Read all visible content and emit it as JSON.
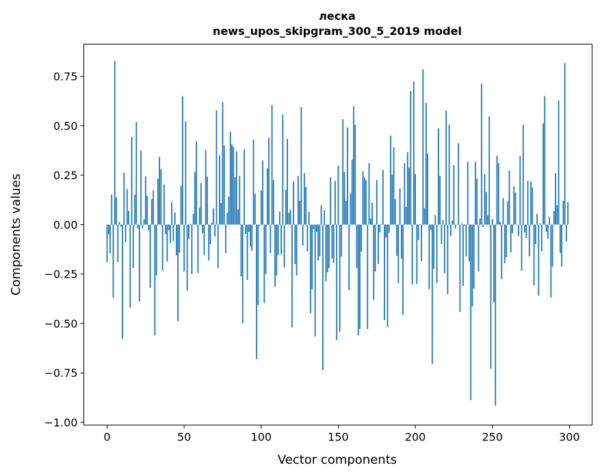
{
  "chart_data": {
    "type": "bar",
    "title_line1": "леска",
    "title_line2": "news_upos_skipgram_300_5_2019 model",
    "xlabel": "Vector components",
    "ylabel": "Components values",
    "xlim": [
      -15.1,
      314.7
    ],
    "ylim": [
      -1.014,
      0.913
    ],
    "xticks": [
      0,
      50,
      100,
      150,
      200,
      250,
      300
    ],
    "xtick_labels": [
      "0",
      "50",
      "100",
      "150",
      "200",
      "250",
      "300"
    ],
    "yticks": [
      0.75,
      0.5,
      0.25,
      0,
      -0.25,
      -0.5,
      -0.75,
      -1.0
    ],
    "ytick_labels": [
      "0.75",
      "0.50",
      "0.25",
      "0.00",
      "−0.25",
      "−0.50",
      "−0.75",
      "−1.00"
    ],
    "grid": false,
    "bar_color": "#1f77b4",
    "bar_width": 0.8,
    "values": [
      -0.19,
      -0.05,
      -0.145,
      0.152,
      -0.37,
      0.827,
      0.138,
      -0.19,
      0.014,
      -0.01,
      -0.578,
      0.263,
      -0.09,
      0.18,
      0.07,
      -0.42,
      0.443,
      -0.22,
      0.152,
      0.519,
      -0.02,
      -0.39,
      0.374,
      -0.02,
      0.028,
      0.245,
      0.145,
      -0.03,
      -0.32,
      0.128,
      0.173,
      -0.56,
      -0.256,
      0.232,
      0.342,
      0.28,
      -0.232,
      0.204,
      -0.048,
      -0.187,
      -0.028,
      -0.093,
      0.114,
      -0.083,
      0.062,
      -0.156,
      -0.49,
      -0.142,
      0.197,
      0.65,
      -0.238,
      0.522,
      -0.334,
      -0.072,
      0.005,
      -0.25,
      0.055,
      0.266,
      0.422,
      -0.245,
      0.086,
      0.211,
      -0.044,
      -0.155,
      0.377,
      0.242,
      -0.182,
      -0.1,
      0.01,
      0.083,
      -0.06,
      0.578,
      -0.22,
      0.35,
      0.11,
      0.62,
      0.4,
      -0.144,
      0.059,
      0.142,
      0.47,
      0.405,
      0.394,
      0.239,
      0.37,
      0.076,
      0.246,
      -0.262,
      -0.5,
      0.38,
      -0.047,
      -0.28,
      -0.037,
      -0.11,
      -0.134,
      0.43,
      0.156,
      -0.68,
      -0.407,
      -0.007,
      0.173,
      0.325,
      -0.397,
      -0.25,
      0.284,
      0.44,
      -0.144,
      0.606,
      0.225,
      -0.314,
      -0.258,
      -0.155,
      0.066,
      -0.15,
      0.557,
      -0.217,
      0.176,
      0.433,
      0.059,
      0.076,
      -0.52,
      0.218,
      -0.2,
      -0.258,
      0.246,
      0.121,
      0.595,
      -0.106,
      0.26,
      0.19,
      -0.137,
      0.066,
      -0.449,
      -0.328,
      -0.023,
      -0.566,
      -0.037,
      -0.182,
      -0.161,
      0.097,
      -0.736,
      0.073,
      -0.286,
      -0.241,
      -0.22,
      0.239,
      -0.172,
      -0.193,
      0.221,
      -0.584,
      0.298,
      -0.542,
      -0.161,
      0.533,
      0.266,
      0.121,
      0.491,
      -0.331,
      0.156,
      0.329,
      0.599,
      0.505,
      -0.22,
      -0.56,
      -0.528,
      -0.137,
      0.27,
      0.239,
      0.225,
      -0.528,
      0.311,
      0.031,
      0.111,
      -0.38,
      -0.238,
      0.225,
      -0.2,
      -0.04,
      0.003,
      0.277,
      -0.483,
      -0.065,
      -0.518,
      -0.04,
      0.45,
      0.253,
      0.391,
      0.128,
      -0.158,
      -0.296,
      0.183,
      -0.172,
      -0.456,
      0.311,
      0.09,
      0.367,
      0.287,
      0.676,
      -0.303,
      0.723,
      0.256,
      -0.3,
      -0.078,
      0.003,
      -0.186,
      0.785,
      0.083,
      0.616,
      0.36,
      -0.328,
      -0.027,
      -0.705,
      -0.224,
      0.048,
      -0.296,
      0.488,
      0.246,
      -0.099,
      0.024,
      -0.245,
      0.578,
      -0.352,
      0.505,
      -0.058,
      0.021,
      0.301,
      -0.02,
      0.0,
      0.412,
      -0.442,
      0.007,
      -0.31,
      -0.006,
      -0.161,
      0.318,
      -0.186,
      -0.888,
      -0.414,
      -0.324,
      0.318,
      0.232,
      -0.238,
      0.031,
      0.713,
      -0.013,
      0.256,
      0.166,
      0.045,
      0.547,
      -0.729,
      0.028,
      -0.393,
      -0.916,
      0.349,
      0.311,
      0.014,
      -0.276,
      0.135,
      -0.196,
      -0.165,
      0.118,
      0.273,
      -0.141,
      -0.044,
      0.194,
      0.163,
      0.0,
      -0.058,
      0.346,
      -0.234,
      0.505,
      -0.04,
      -0.068,
      0.221,
      -0.161,
      0.218,
      0.187,
      -0.307,
      -0.099,
      0.055,
      -0.359,
      0.007,
      -0.137,
      0.512,
      0.65,
      -0.037,
      -0.072,
      0.038,
      -0.369,
      -0.213,
      0.069,
      0.26,
      0.097,
      0.626,
      -0.144,
      -0.213,
      0.121,
      0.817,
      -0.085,
      0.114
    ]
  }
}
